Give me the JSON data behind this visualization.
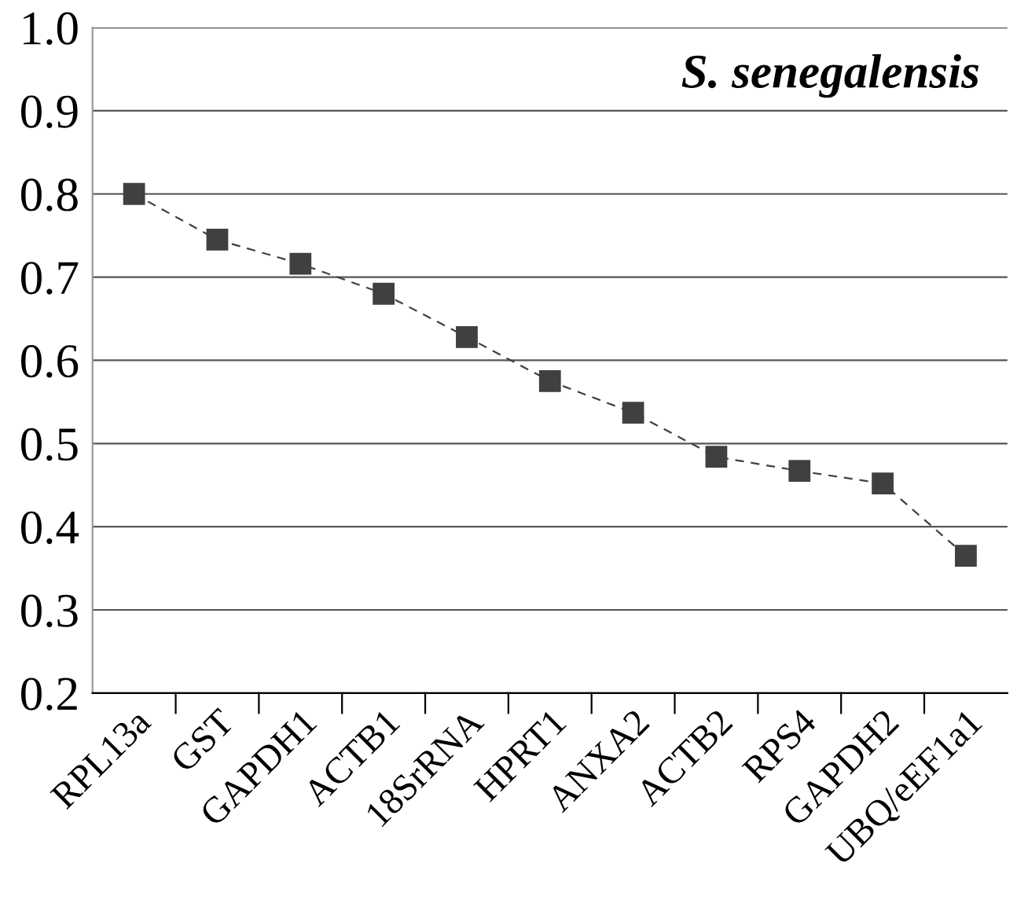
{
  "chart_data": {
    "type": "line",
    "title": "S. senegalensis",
    "categories": [
      "RPL13a",
      "GST",
      "GAPDH1",
      "ACTB1",
      "18SrRNA",
      "HPRT1",
      "ANXA2",
      "ACTB2",
      "RPS4",
      "GAPDH2",
      "UBQ/eEF1a1"
    ],
    "series": [
      {
        "color": "#404040",
        "values": [
          0.8,
          0.745,
          0.716,
          0.68,
          0.628,
          0.575,
          0.537,
          0.484,
          0.467,
          0.452,
          0.365
        ]
      }
    ],
    "ylim": [
      0.2,
      1.0
    ],
    "yticks": [
      {
        "value": 0.2,
        "label": "0.2"
      },
      {
        "value": 0.3,
        "label": "0.3"
      },
      {
        "value": 0.4,
        "label": "0.4"
      },
      {
        "value": 0.5,
        "label": "0.5"
      },
      {
        "value": 0.6,
        "label": "0.6"
      },
      {
        "value": 0.7,
        "label": "0.7"
      },
      {
        "value": 0.8,
        "label": "0.8"
      },
      {
        "value": 0.9,
        "label": "0.9"
      },
      {
        "value": 1.0,
        "label": "1.0"
      }
    ],
    "grid": "y",
    "marker": "square",
    "line_style": "dashed",
    "legend": false
  }
}
